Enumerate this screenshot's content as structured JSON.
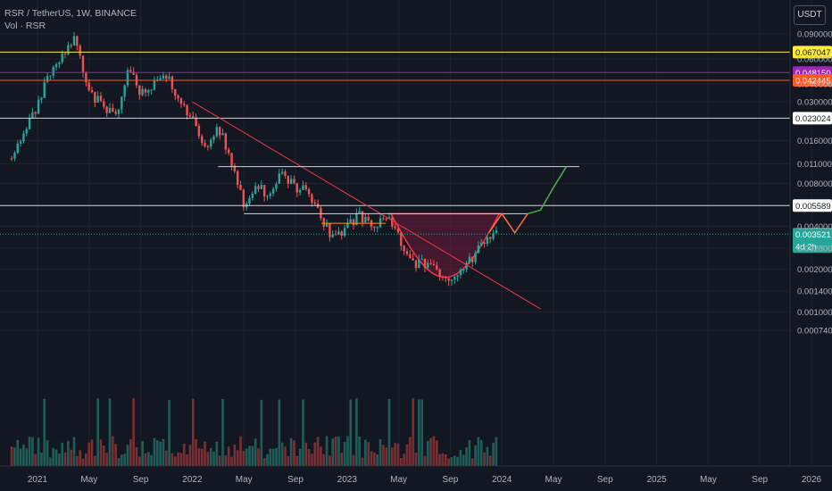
{
  "legend": {
    "symbol_line": "RSR / TetherUS, 1W, BINANCE",
    "volume_line": "Vol · RSR"
  },
  "currency_button": "USDT",
  "colors": {
    "background": "#131722",
    "up": "#26a69a",
    "down": "#ef5350",
    "yellow_level": "#ffeb3b",
    "purple_level": "#9c27b0",
    "orange_level": "#ff5722",
    "white_level": "#d1d4dc",
    "trendline": "#f23645",
    "cup_fill": "#6d1b3a",
    "projection": "#4caf50"
  },
  "chart_data": {
    "type": "candlestick",
    "title": "RSR / TetherUS, 1W, BINANCE",
    "y_scale": "log",
    "y_ticks": [
      "0.090000",
      "0.060000",
      "0.040000",
      "0.030000",
      "0.016000",
      "0.011000",
      "0.008000",
      "0.004000",
      "0.002800",
      "0.002000",
      "0.001400",
      "0.001000",
      "0.000740"
    ],
    "x_ticks": [
      "2021",
      "May",
      "Sep",
      "2022",
      "May",
      "Sep",
      "2023",
      "May",
      "Sep",
      "2024",
      "May",
      "Sep",
      "2025",
      "May",
      "Sep",
      "2026"
    ],
    "price_levels": [
      {
        "value": 0.067047,
        "label": "0.067047",
        "color": "#ffeb3b"
      },
      {
        "value": 0.04815,
        "label": "0.048150",
        "color": "#9c27b0"
      },
      {
        "value": 0.042445,
        "label": "0.042445",
        "color": "#ff5722"
      },
      {
        "value": 0.023024,
        "label": "0.023024",
        "color": "#d1d4dc"
      },
      {
        "value": 0.005589,
        "label": "0.005589",
        "color": "#d1d4dc"
      }
    ],
    "current_price": {
      "value": 0.003521,
      "label": "0.003521",
      "countdown": "4d 2h"
    },
    "swing_prices": [
      {
        "date": "2020-11",
        "price": 0.012
      },
      {
        "date": "2021-01",
        "price": 0.028
      },
      {
        "date": "2021-02",
        "price": 0.05
      },
      {
        "date": "2021-04",
        "price": 0.085
      },
      {
        "date": "2021-05",
        "price": 0.035
      },
      {
        "date": "2021-07",
        "price": 0.023
      },
      {
        "date": "2021-08",
        "price": 0.05
      },
      {
        "date": "2021-09",
        "price": 0.035
      },
      {
        "date": "2021-11",
        "price": 0.045
      },
      {
        "date": "2021-12",
        "price": 0.032
      },
      {
        "date": "2022-01",
        "price": 0.022
      },
      {
        "date": "2022-02",
        "price": 0.014
      },
      {
        "date": "2022-03",
        "price": 0.02
      },
      {
        "date": "2022-04",
        "price": 0.012
      },
      {
        "date": "2022-05",
        "price": 0.0055
      },
      {
        "date": "2022-06",
        "price": 0.0075
      },
      {
        "date": "2022-07",
        "price": 0.0068
      },
      {
        "date": "2022-08",
        "price": 0.0095
      },
      {
        "date": "2022-09",
        "price": 0.0075
      },
      {
        "date": "2022-10",
        "price": 0.007
      },
      {
        "date": "2022-11",
        "price": 0.0045
      },
      {
        "date": "2022-12",
        "price": 0.0032
      },
      {
        "date": "2023-02",
        "price": 0.0048
      },
      {
        "date": "2023-03",
        "price": 0.004
      },
      {
        "date": "2023-04",
        "price": 0.0046
      },
      {
        "date": "2023-05",
        "price": 0.0035
      },
      {
        "date": "2023-06",
        "price": 0.0021
      },
      {
        "date": "2023-07",
        "price": 0.0022
      },
      {
        "date": "2023-08",
        "price": 0.0019
      },
      {
        "date": "2023-09",
        "price": 0.0018
      },
      {
        "date": "2023-10",
        "price": 0.0021
      },
      {
        "date": "2023-11",
        "price": 0.0026
      },
      {
        "date": "2023-12",
        "price": 0.0035
      }
    ]
  }
}
